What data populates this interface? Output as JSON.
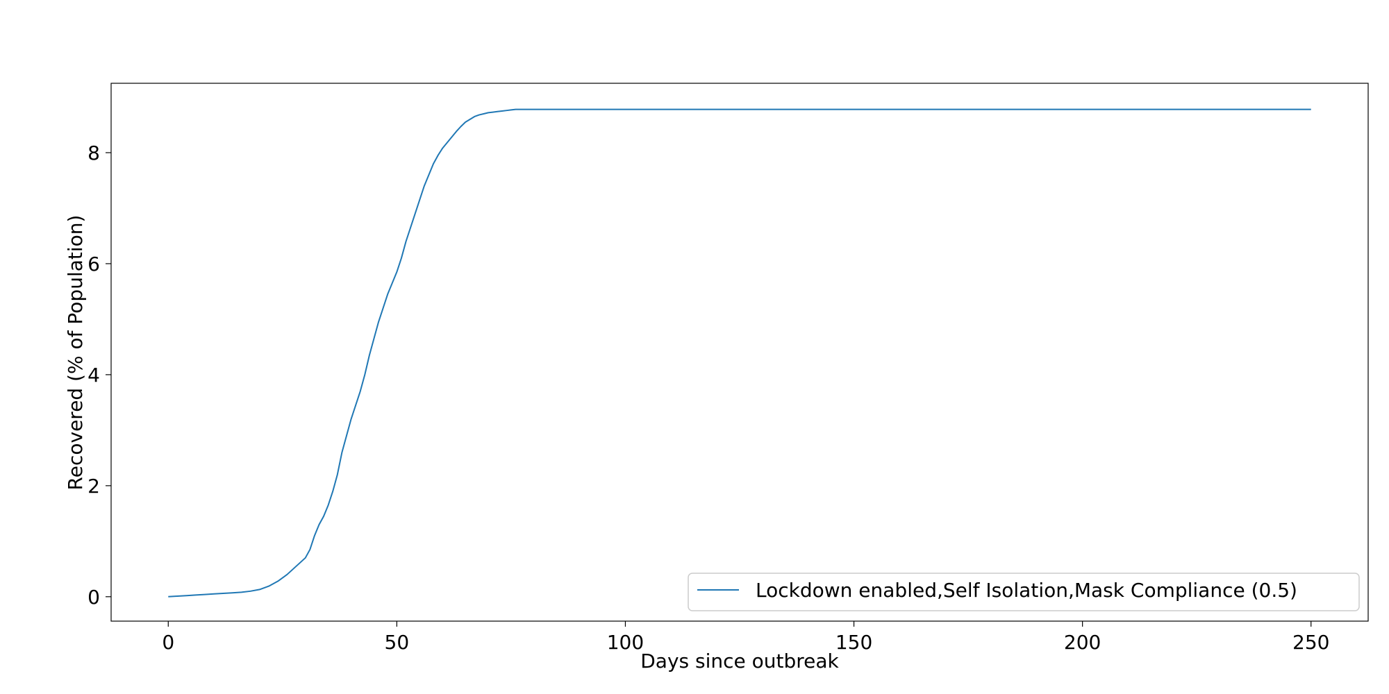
{
  "chart_data": {
    "type": "line",
    "xlabel": "Days since outbreak",
    "ylabel": "Recovered (% of Population)",
    "xlim": [
      -12.5,
      262.5
    ],
    "ylim": [
      -0.44,
      9.25
    ],
    "xticks": [
      0,
      50,
      100,
      150,
      200,
      250
    ],
    "yticks": [
      0,
      2,
      4,
      6,
      8
    ],
    "grid": false,
    "legend_position": "lower-right",
    "series": [
      {
        "name": "Lockdown enabled,Self Isolation,Mask Compliance (0.5)",
        "color": "#1f77b4",
        "x": [
          0,
          2,
          4,
          6,
          8,
          10,
          12,
          14,
          16,
          18,
          20,
          22,
          24,
          26,
          28,
          30,
          31,
          32,
          33,
          34,
          35,
          36,
          37,
          38,
          39,
          40,
          41,
          42,
          43,
          44,
          45,
          46,
          47,
          48,
          49,
          50,
          51,
          52,
          53,
          54,
          55,
          56,
          57,
          58,
          59,
          60,
          61,
          62,
          63,
          64,
          65,
          66,
          67,
          68,
          69,
          70,
          71,
          72,
          73,
          74,
          75,
          76,
          80,
          100,
          150,
          200,
          250
        ],
        "y": [
          0.0,
          0.01,
          0.02,
          0.03,
          0.04,
          0.05,
          0.06,
          0.07,
          0.08,
          0.1,
          0.13,
          0.19,
          0.28,
          0.4,
          0.55,
          0.7,
          0.85,
          1.1,
          1.3,
          1.45,
          1.65,
          1.9,
          2.2,
          2.6,
          2.9,
          3.2,
          3.45,
          3.7,
          4.0,
          4.35,
          4.65,
          4.95,
          5.2,
          5.45,
          5.65,
          5.85,
          6.1,
          6.4,
          6.65,
          6.9,
          7.15,
          7.4,
          7.6,
          7.8,
          7.95,
          8.08,
          8.18,
          8.28,
          8.38,
          8.47,
          8.55,
          8.6,
          8.65,
          8.68,
          8.7,
          8.72,
          8.73,
          8.74,
          8.75,
          8.76,
          8.77,
          8.78,
          8.78,
          8.78,
          8.78,
          8.78,
          8.78
        ]
      }
    ]
  }
}
